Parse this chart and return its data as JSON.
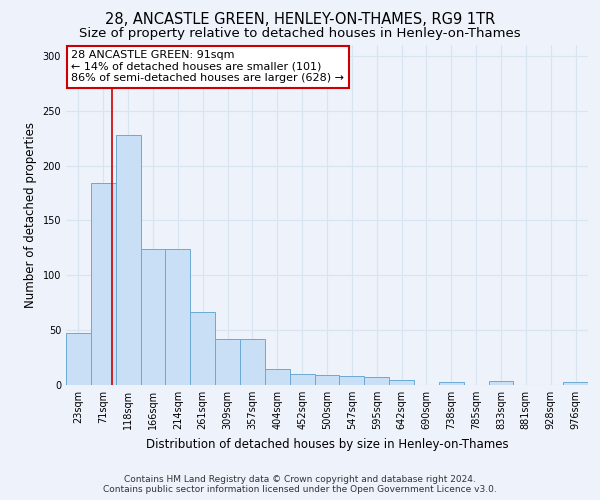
{
  "title": "28, ANCASTLE GREEN, HENLEY-ON-THAMES, RG9 1TR",
  "subtitle": "Size of property relative to detached houses in Henley-on-Thames",
  "xlabel": "Distribution of detached houses by size in Henley-on-Thames",
  "ylabel": "Number of detached properties",
  "bar_color": "#c9dff5",
  "bar_edge_color": "#6aaad4",
  "bin_labels": [
    "23sqm",
    "71sqm",
    "118sqm",
    "166sqm",
    "214sqm",
    "261sqm",
    "309sqm",
    "357sqm",
    "404sqm",
    "452sqm",
    "500sqm",
    "547sqm",
    "595sqm",
    "642sqm",
    "690sqm",
    "738sqm",
    "785sqm",
    "833sqm",
    "881sqm",
    "928sqm",
    "976sqm"
  ],
  "bar_values": [
    47,
    184,
    228,
    124,
    124,
    67,
    42,
    42,
    15,
    10,
    9,
    8,
    7,
    5,
    0,
    3,
    0,
    4,
    0,
    0,
    3
  ],
  "vline_x": 1.35,
  "vline_color": "#cc0000",
  "annotation_line1": "28 ANCASTLE GREEN: 91sqm",
  "annotation_line2": "← 14% of detached houses are smaller (101)",
  "annotation_line3": "86% of semi-detached houses are larger (628) →",
  "ylim": [
    0,
    310
  ],
  "yticks": [
    0,
    50,
    100,
    150,
    200,
    250,
    300
  ],
  "footer_line1": "Contains HM Land Registry data © Crown copyright and database right 2024.",
  "footer_line2": "Contains public sector information licensed under the Open Government Licence v3.0.",
  "background_color": "#eef2fa",
  "grid_color": "#d8e4f0",
  "title_fontsize": 10.5,
  "subtitle_fontsize": 9.5,
  "axis_label_fontsize": 8.5,
  "tick_fontsize": 7,
  "annotation_fontsize": 8,
  "footer_fontsize": 6.5
}
